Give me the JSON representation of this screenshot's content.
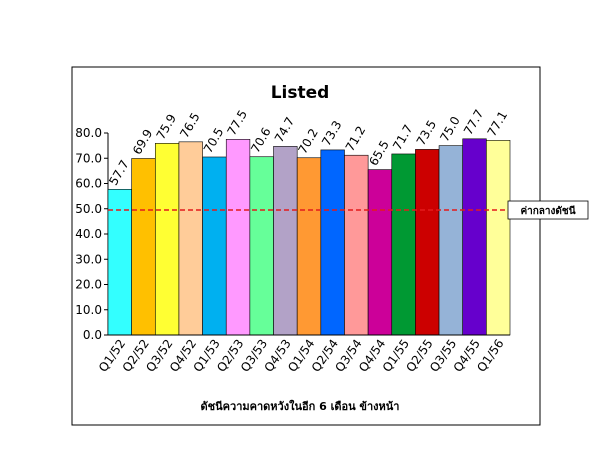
{
  "chart_data": {
    "type": "bar",
    "title": "Listed",
    "x_axis_label": "ดัชนีความคาดหวังในอีก 6 เดือน ข้างหน้า",
    "categories": [
      "Q1/52",
      "Q2/52",
      "Q3/52",
      "Q4/52",
      "Q1/53",
      "Q2/53",
      "Q3/53",
      "Q4/53",
      "Q1/54",
      "Q2/54",
      "Q3/54",
      "Q4/54",
      "Q1/55",
      "Q2/55",
      "Q3/55",
      "Q4/55",
      "Q1/56"
    ],
    "values": [
      57.7,
      69.9,
      75.9,
      76.5,
      70.5,
      77.5,
      70.6,
      74.7,
      70.2,
      73.3,
      71.2,
      65.5,
      71.7,
      73.5,
      75.0,
      77.7,
      77.1
    ],
    "value_labels": [
      "57.7",
      "69.9",
      "75.9",
      "76.5",
      "70.5",
      "77.5",
      "70.6",
      "74.7",
      "70.2",
      "73.3",
      "71.2",
      "65.5",
      "71.7",
      "73.5",
      "75.0",
      "77.7",
      "77.1"
    ],
    "colors": [
      "#33ffff",
      "#ffc000",
      "#ffff33",
      "#ffcc99",
      "#00b0f0",
      "#ff99ff",
      "#66ff99",
      "#b2a2c7",
      "#ff9933",
      "#0066ff",
      "#ff9999",
      "#cc0099",
      "#009933",
      "#cc0000",
      "#95b3d7",
      "#6600cc",
      "#ffff99"
    ],
    "ylim": [
      0,
      80
    ],
    "yticks": [
      {
        "value": 0,
        "label": "0.0"
      },
      {
        "value": 10,
        "label": "10.0"
      },
      {
        "value": 20,
        "label": "20.0"
      },
      {
        "value": 30,
        "label": "30.0"
      },
      {
        "value": 40,
        "label": "40.0"
      },
      {
        "value": 50,
        "label": "50.0"
      },
      {
        "value": 60,
        "label": "60.0"
      },
      {
        "value": 70,
        "label": "70.0"
      },
      {
        "value": 80,
        "label": "80.0"
      }
    ],
    "reference_line": {
      "value": 49.5,
      "label": "ค่ากลางดัชนี",
      "color": "#e31a1c"
    }
  }
}
